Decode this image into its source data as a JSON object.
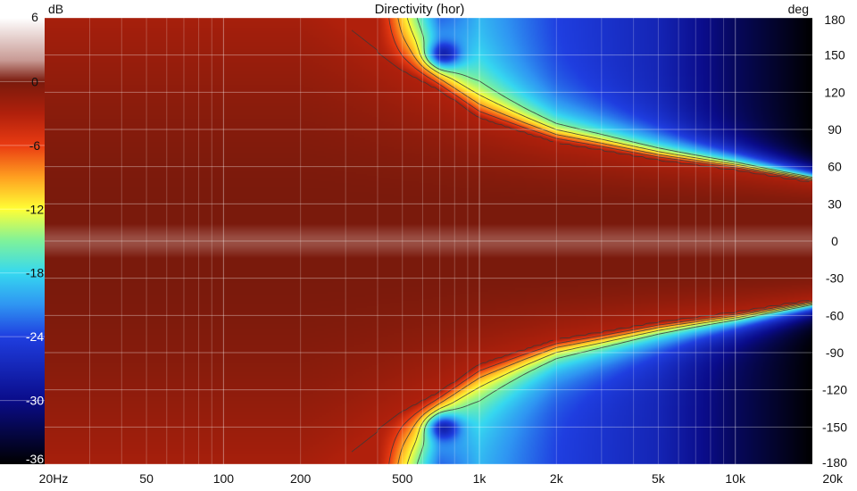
{
  "chart_data": {
    "type": "heatmap",
    "title": "Directivity (hor)",
    "colorbar_unit": "dB",
    "y_unit": "deg",
    "x_scale": "log",
    "xlim": [
      20,
      20000
    ],
    "ylim": [
      -180,
      180
    ],
    "colorbar_range": [
      -36,
      6
    ],
    "x_ticks": [
      {
        "value": 20,
        "label": "20Hz"
      },
      {
        "value": 50,
        "label": "50"
      },
      {
        "value": 100,
        "label": "100"
      },
      {
        "value": 200,
        "label": "200"
      },
      {
        "value": 500,
        "label": "500"
      },
      {
        "value": 1000,
        "label": "1k"
      },
      {
        "value": 2000,
        "label": "2k"
      },
      {
        "value": 5000,
        "label": "5k"
      },
      {
        "value": 10000,
        "label": "10k"
      },
      {
        "value": 20000,
        "label": "20k"
      }
    ],
    "y_ticks": [
      180,
      150,
      120,
      90,
      60,
      30,
      0,
      -30,
      -60,
      -90,
      -120,
      -150,
      -180
    ],
    "colorbar_ticks": [
      6,
      0,
      -6,
      -12,
      -18,
      -24,
      -30,
      -36
    ],
    "contour_levels": [
      -3,
      -6,
      -9,
      -12,
      -15
    ],
    "colorscale": [
      {
        "db": 6,
        "color": "#ffffff"
      },
      {
        "db": 2,
        "color": "#c89a94"
      },
      {
        "db": 0,
        "color": "#7a1a0c"
      },
      {
        "db": -3,
        "color": "#b0200c"
      },
      {
        "db": -6,
        "color": "#ea3b12"
      },
      {
        "db": -9,
        "color": "#ffa020"
      },
      {
        "db": -12,
        "color": "#ffff35"
      },
      {
        "db": -15,
        "color": "#7ef29b"
      },
      {
        "db": -18,
        "color": "#36d8f0"
      },
      {
        "db": -21,
        "color": "#2f95f2"
      },
      {
        "db": -24,
        "color": "#1f3ee0"
      },
      {
        "db": -30,
        "color": "#0a0c8a"
      },
      {
        "db": -36,
        "color": "#000000"
      }
    ],
    "beamwidth_profile": {
      "freq_hz": [
        20,
        200,
        300,
        400,
        500,
        700,
        1000,
        1500,
        2000,
        3000,
        5000,
        10000,
        20000
      ],
      "edge_deg": [
        200,
        200,
        172,
        152,
        138,
        122,
        100,
        88,
        80,
        74,
        66,
        58,
        48
      ]
    },
    "floor_profile": {
      "freq_hz": [
        20,
        400,
        500,
        700,
        1000,
        2000,
        5000,
        10000,
        20000
      ],
      "floor_db": [
        -3,
        -3,
        -14,
        -26,
        -20,
        -24,
        -27,
        -32,
        -36
      ]
    },
    "lobe": {
      "freq_hz": 720,
      "angle_deg": 150,
      "depth_db": -10
    }
  }
}
